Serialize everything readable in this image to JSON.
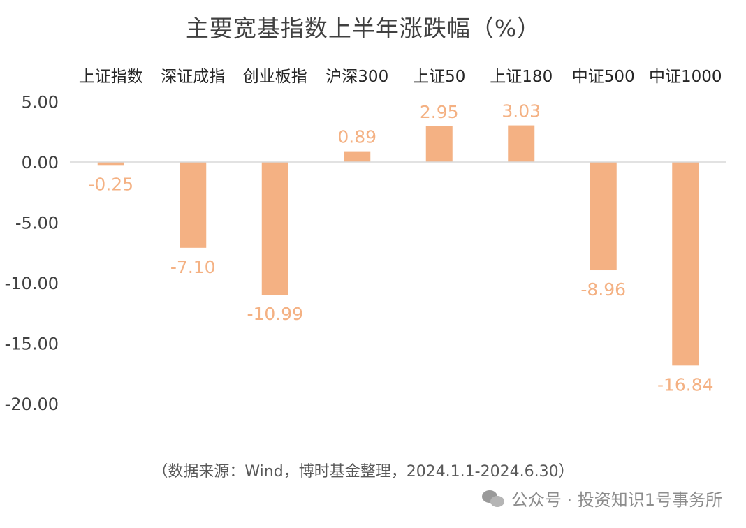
{
  "header": {
    "title": "主要宽基指数上半年涨跌幅（%）"
  },
  "chart_data": {
    "type": "bar",
    "title": "主要宽基指数上半年涨跌幅（%）",
    "categories": [
      "上证指数",
      "深证成指",
      "创业板指",
      "沪深300",
      "上证50",
      "上证180",
      "中证500",
      "中证1000"
    ],
    "values": [
      -0.25,
      -7.1,
      -10.99,
      0.89,
      2.95,
      3.03,
      -8.96,
      -16.84
    ],
    "value_labels": [
      "-0.25",
      "-7.10",
      "-10.99",
      "0.89",
      "2.95",
      "3.03",
      "-8.96",
      "-16.84"
    ],
    "y_ticks": [
      "5.00",
      "0.00",
      "-5.00",
      "-10.00",
      "-15.00",
      "-20.00"
    ],
    "y_tick_values": [
      5,
      0,
      -5,
      -10,
      -15,
      -20
    ],
    "ylim": [
      -20,
      5
    ],
    "xlabel": "",
    "ylabel": "",
    "grid": false,
    "legend": "none",
    "category_label_position": "top",
    "bar_color": "#F4B183",
    "label_color": "#F4B183",
    "axis_color": "#D9D9D9"
  },
  "footer": {
    "source": "（数据来源：Wind，博时基金整理，2024.1.1-2024.6.30）",
    "watermark": "公众号 · 投资知识1号事务所",
    "watermark_icon": "wechat-icon"
  }
}
